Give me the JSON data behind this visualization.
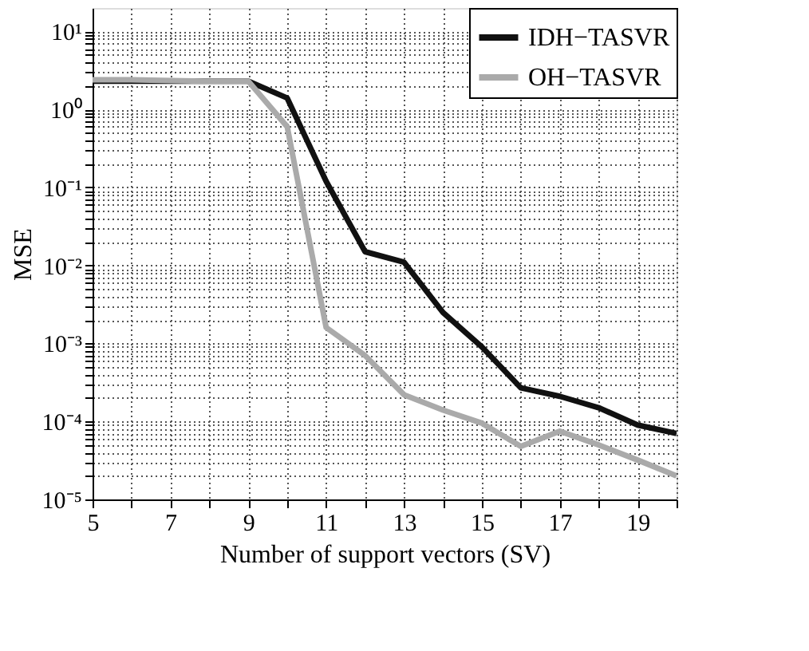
{
  "chart_data": {
    "type": "line",
    "xlabel": "Number of support vectors (SV)",
    "ylabel": "MSE",
    "log": "y",
    "grid": true,
    "legend": "top right",
    "marker": "none",
    "line_style": "solid",
    "x": [
      5,
      6,
      7,
      8,
      9,
      10,
      11,
      12,
      13,
      14,
      15,
      16,
      17,
      18,
      19,
      20
    ],
    "xlim": [
      5,
      20
    ],
    "xticks": [
      5,
      {
        "value": 6,
        "label": null
      },
      7,
      {
        "value": 8,
        "label": null
      },
      9,
      {
        "value": 10,
        "label": null
      },
      11,
      {
        "value": 12,
        "label": null
      },
      13,
      {
        "value": 14,
        "label": null
      },
      15,
      {
        "value": 16,
        "label": null
      },
      17,
      {
        "value": 18,
        "label": null
      },
      19,
      {
        "value": 20,
        "label": null
      }
    ],
    "ylim": [
      1e-05,
      20
    ],
    "yticks": [
      {
        "value": 1e-05,
        "label": "10⁻⁵"
      },
      {
        "value": 2e-05,
        "label": null
      },
      {
        "value": 3e-05,
        "label": null
      },
      {
        "value": 4e-05,
        "label": null
      },
      {
        "value": 5e-05,
        "label": null
      },
      {
        "value": 6e-05,
        "label": null
      },
      {
        "value": 7e-05,
        "label": null
      },
      {
        "value": 8e-05,
        "label": null
      },
      {
        "value": 9e-05,
        "label": null
      },
      {
        "value": 0.0001,
        "label": "10⁻⁴"
      },
      {
        "value": 0.0002,
        "label": null
      },
      {
        "value": 0.0003,
        "label": null
      },
      {
        "value": 0.0004,
        "label": null
      },
      {
        "value": 0.0005,
        "label": null
      },
      {
        "value": 0.0006,
        "label": null
      },
      {
        "value": 0.0007,
        "label": null
      },
      {
        "value": 0.0008,
        "label": null
      },
      {
        "value": 0.0009,
        "label": null
      },
      {
        "value": 0.001,
        "label": "10⁻³"
      },
      {
        "value": 0.002,
        "label": null
      },
      {
        "value": 0.003,
        "label": null
      },
      {
        "value": 0.004,
        "label": null
      },
      {
        "value": 0.005,
        "label": null
      },
      {
        "value": 0.006,
        "label": null
      },
      {
        "value": 0.007,
        "label": null
      },
      {
        "value": 0.008,
        "label": null
      },
      {
        "value": 0.009,
        "label": null
      },
      {
        "value": 0.01,
        "label": "10⁻²"
      },
      {
        "value": 0.02,
        "label": null
      },
      {
        "value": 0.03,
        "label": null
      },
      {
        "value": 0.04,
        "label": null
      },
      {
        "value": 0.05,
        "label": null
      },
      {
        "value": 0.06,
        "label": null
      },
      {
        "value": 0.07,
        "label": null
      },
      {
        "value": 0.08,
        "label": null
      },
      {
        "value": 0.09,
        "label": null
      },
      {
        "value": 0.1,
        "label": "10⁻¹"
      },
      {
        "value": 0.2,
        "label": null
      },
      {
        "value": 0.3,
        "label": null
      },
      {
        "value": 0.4,
        "label": null
      },
      {
        "value": 0.5,
        "label": null
      },
      {
        "value": 0.6,
        "label": null
      },
      {
        "value": 0.7,
        "label": null
      },
      {
        "value": 0.8,
        "label": null
      },
      {
        "value": 0.9,
        "label": null
      },
      {
        "value": 1,
        "label": "10⁰"
      },
      {
        "value": 2,
        "label": null
      },
      {
        "value": 3,
        "label": null
      },
      {
        "value": 4,
        "label": null
      },
      {
        "value": 5,
        "label": null
      },
      {
        "value": 6,
        "label": null
      },
      {
        "value": 7,
        "label": null
      },
      {
        "value": 8,
        "label": null
      },
      {
        "value": 9,
        "label": null
      },
      {
        "value": 10,
        "label": "10¹"
      }
    ],
    "series": [
      {
        "name": "IDH−TASVR",
        "color": "#111111",
        "values": [
          2.3,
          2.3,
          2.3,
          2.3,
          2.3,
          1.4,
          0.12,
          0.015,
          0.011,
          0.0025,
          0.0009,
          0.00027,
          0.00021,
          0.00015,
          9e-05,
          7e-05
        ]
      },
      {
        "name": "OH−TASVR",
        "color": "#aaaaaa",
        "values": [
          2.4,
          2.4,
          2.35,
          2.3,
          2.3,
          0.6,
          0.0016,
          0.0007,
          0.00022,
          0.00014,
          9.5e-05,
          4.8e-05,
          7.5e-05,
          5e-05,
          3.2e-05,
          2e-05
        ]
      }
    ]
  }
}
